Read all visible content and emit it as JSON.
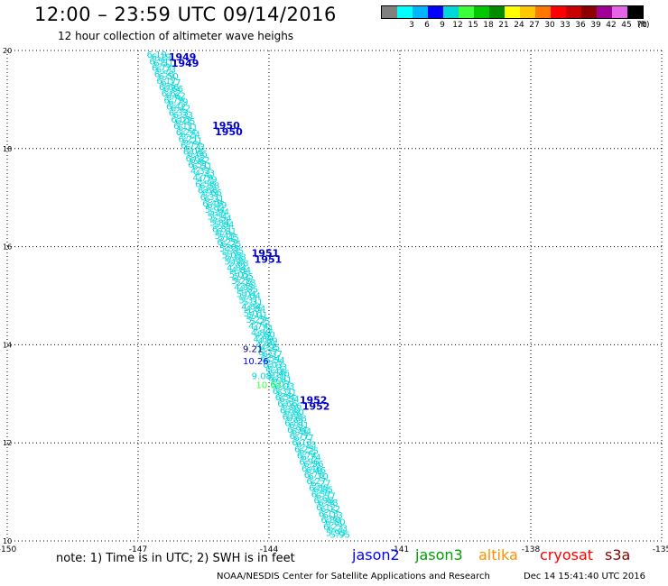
{
  "header": {
    "title": "12:00 – 23:59 UTC 09/14/2016",
    "subtitle": "12 hour collection of altimeter wave heighs"
  },
  "legend": {
    "unit": "(ft)",
    "items": [
      {
        "label": "",
        "color": "#808080"
      },
      {
        "label": "3",
        "color": "#00ffff"
      },
      {
        "label": "6",
        "color": "#00b4ff"
      },
      {
        "label": "9",
        "color": "#0000ff"
      },
      {
        "label": "12",
        "color": "#00d8d8"
      },
      {
        "label": "15",
        "color": "#3cff3c"
      },
      {
        "label": "18",
        "color": "#00c800"
      },
      {
        "label": "21",
        "color": "#008c00"
      },
      {
        "label": "24",
        "color": "#ffff00"
      },
      {
        "label": "27",
        "color": "#ffc800"
      },
      {
        "label": "30",
        "color": "#ff7800"
      },
      {
        "label": "33",
        "color": "#ff0000"
      },
      {
        "label": "36",
        "color": "#c80000"
      },
      {
        "label": "39",
        "color": "#8c0000"
      },
      {
        "label": "42",
        "color": "#a00096"
      },
      {
        "label": "45",
        "color": "#e664e6"
      },
      {
        "label": "70",
        "color": "#000000"
      }
    ]
  },
  "axes": {
    "x_ticks": [
      "-150",
      "-147",
      "-144",
      "-141",
      "-138",
      "-135"
    ],
    "y_ticks": [
      "10",
      "12",
      "14",
      "16",
      "18",
      "20"
    ],
    "xlim": [
      -150,
      -135
    ],
    "ylim": [
      10,
      20
    ],
    "grid": true
  },
  "time_labels": [
    {
      "text": "1949",
      "lon": -146.3,
      "lat": 19.8
    },
    {
      "text": "1950",
      "lon": -145.3,
      "lat": 18.4
    },
    {
      "text": "1951",
      "lon": -144.4,
      "lat": 15.8
    },
    {
      "text": "1952",
      "lon": -143.3,
      "lat": 12.8
    }
  ],
  "highlighted_values": [
    {
      "text": "9.21",
      "lon": -144.6,
      "lat": 13.85,
      "color": "#000080"
    },
    {
      "text": "10.26",
      "lon": -144.6,
      "lat": 13.6,
      "color": "#0000ff"
    },
    {
      "text": "9.08",
      "lon": -144.4,
      "lat": 13.3,
      "color": "#00d8d8"
    },
    {
      "text": "10.53",
      "lon": -144.3,
      "lat": 13.12,
      "color": "#3cff3c"
    }
  ],
  "track_values": [
    "6.19",
    "6.51",
    "6.73",
    "6.50",
    "6.17",
    "6.66",
    "6.62",
    "6.79",
    "6.42",
    "6.33",
    "6.05",
    "6.11",
    "6.24",
    "6.21",
    "6.73",
    "6.06",
    "6.62",
    "6.51",
    "4.33",
    "4.79",
    "6.58",
    "6.66",
    "6.31",
    "6.49",
    "5.94",
    "5.54",
    "5.84",
    "6.81",
    "5.45",
    "6.25",
    "5.85",
    "5.08",
    "5.68",
    "4.84",
    "5.05",
    "5.28",
    "4.85",
    "5.04",
    "5.31",
    "4.84",
    "5.01",
    "5.25",
    "4.74",
    "4.80",
    "4.89",
    "4.95",
    "6.37",
    "6.54",
    "6.03",
    "5.46",
    "6.81",
    "6.03",
    "6.31",
    "6.54",
    "6.66",
    "6.80",
    "6.68",
    "6.81",
    "6.94",
    "6.77",
    "6.13",
    "6.25",
    "6.74",
    "6.96",
    "6.46",
    "6.70",
    "6.27",
    "6.85",
    "6.57",
    "6.98",
    "6.12",
    "6.13",
    "6.80",
    "6.23",
    "5.95"
  ],
  "notes": {
    "note": "note: 1) Time is in UTC; 2) SWH is in feet"
  },
  "satellites": [
    {
      "name": "jason2",
      "color": "#0000ff"
    },
    {
      "name": "jason3",
      "color": "#00a000"
    },
    {
      "name": "altika",
      "color": "#ff9000"
    },
    {
      "name": "cryosat",
      "color": "#ff0000"
    },
    {
      "name": "s3a",
      "color": "#8c0000"
    }
  ],
  "footer": {
    "credit": "NOAA/NESDIS Center for Satellite Applications and Research",
    "timestamp": "Dec 14 15:41:40 UTC 2016"
  }
}
